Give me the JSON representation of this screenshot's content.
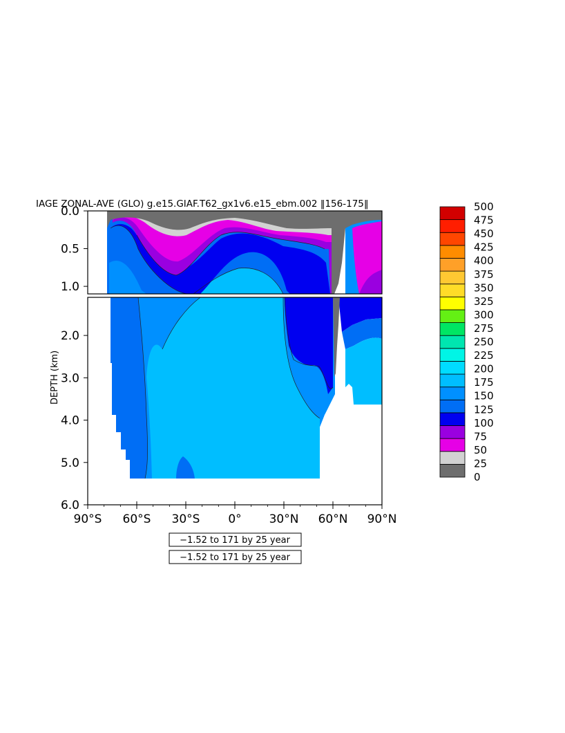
{
  "chart_data": {
    "type": "heatmap",
    "title": "IAGE ZONAL-AVE (GLO) g.e15.GIAF.T62_gx1v6.e15_ebm.002 ‖156-175‖",
    "xlabel": "",
    "ylabel": "DEPTH (km)",
    "x_ticks": [
      "90°S",
      "60°S",
      "30°S",
      "0°",
      "30°N",
      "60°N",
      "90°N"
    ],
    "x_tick_values": [
      -90,
      -60,
      -30,
      0,
      30,
      60,
      90
    ],
    "y_ticks_upper": [
      "0.0",
      "0.5",
      "1.0"
    ],
    "y_ticks_upper_values": [
      0.0,
      0.5,
      1.0
    ],
    "y_ticks_lower": [
      "2.0",
      "3.0",
      "4.0",
      "5.0",
      "6.0"
    ],
    "y_ticks_lower_values": [
      2.0,
      3.0,
      4.0,
      5.0,
      6.0
    ],
    "xlim": [
      -90,
      90
    ],
    "ylim_upper": [
      0.0,
      1.1
    ],
    "ylim_lower": [
      1.1,
      6.0
    ],
    "colorbar": {
      "levels": [
        "0",
        "25",
        "50",
        "75",
        "100",
        "125",
        "150",
        "175",
        "200",
        "225",
        "250",
        "275",
        "300",
        "325",
        "350",
        "375",
        "400",
        "425",
        "450",
        "475",
        "500"
      ],
      "colors": [
        "#6e6e6e",
        "#d2d2d2",
        "#e600e6",
        "#9a00e0",
        "#0000f0",
        "#006ef5",
        "#0090ff",
        "#00beff",
        "#00dcff",
        "#00f5e6",
        "#00e6b0",
        "#00e664",
        "#64f014",
        "#ffff00",
        "#ffdc28",
        "#ffc832",
        "#ffa028",
        "#ff8c00",
        "#ff4600",
        "#ff1e00",
        "#d20000"
      ]
    },
    "notes": [
      "−1.52 to 171 by 25 year",
      "−1.52 to 171 by 25 year"
    ]
  }
}
